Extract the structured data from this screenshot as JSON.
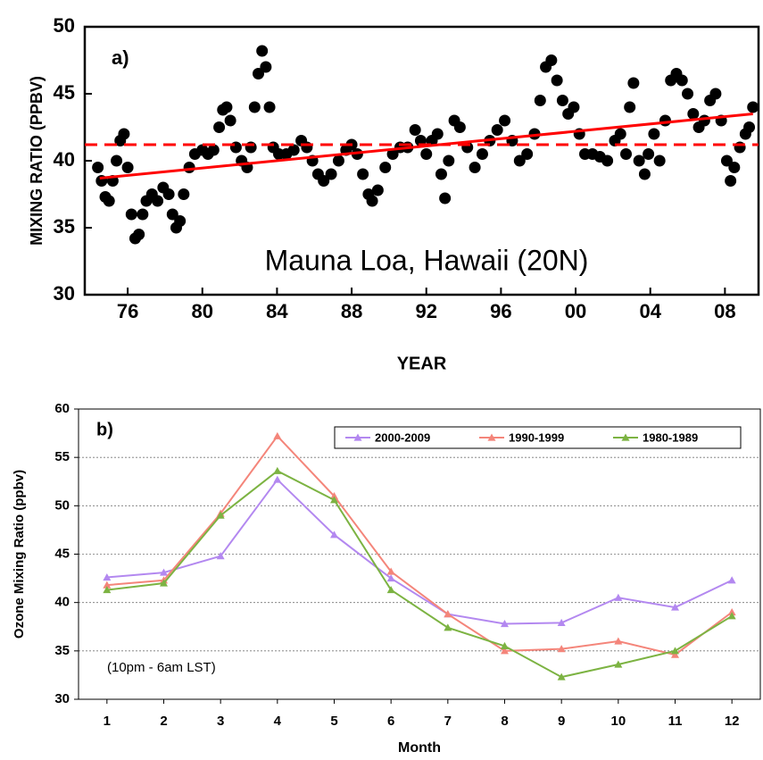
{
  "chart_data": [
    {
      "type": "scatter",
      "panel_label": "a)",
      "annotation": "Mauna Loa, Hawaii (20N)",
      "x_label": "YEAR",
      "y_label": "MIXING RATIO  (PPBV)",
      "color": "#000000",
      "xlim": [
        1973.7,
        2009.8
      ],
      "ylim": [
        30,
        50
      ],
      "xticks": [
        {
          "value": 1976,
          "label": "76"
        },
        {
          "value": 1980,
          "label": "80"
        },
        {
          "value": 1984,
          "label": "84"
        },
        {
          "value": 1988,
          "label": "88"
        },
        {
          "value": 1992,
          "label": "92"
        },
        {
          "value": 1996,
          "label": "96"
        },
        {
          "value": 2000,
          "label": "00"
        },
        {
          "value": 2004,
          "label": "04"
        },
        {
          "value": 2008,
          "label": "08"
        }
      ],
      "yticks": [
        30,
        35,
        40,
        45,
        50
      ],
      "x": [
        1974.4,
        1974.6,
        1974.8,
        1975.0,
        1975.2,
        1975.4,
        1975.6,
        1975.8,
        1976.0,
        1976.2,
        1976.4,
        1976.6,
        1976.8,
        1977.0,
        1977.3,
        1977.6,
        1977.9,
        1978.2,
        1978.4,
        1978.6,
        1978.8,
        1979.0,
        1979.3,
        1979.6,
        1980.0,
        1980.3,
        1980.6,
        1980.9,
        1981.1,
        1981.3,
        1981.5,
        1981.8,
        1982.1,
        1982.4,
        1982.6,
        1982.8,
        1983.0,
        1983.2,
        1983.4,
        1983.6,
        1983.8,
        1984.1,
        1984.5,
        1984.9,
        1985.3,
        1985.6,
        1985.9,
        1986.2,
        1986.5,
        1986.9,
        1987.3,
        1987.7,
        1988.0,
        1988.3,
        1988.6,
        1988.9,
        1989.1,
        1989.4,
        1989.8,
        1990.2,
        1990.6,
        1991.0,
        1991.4,
        1991.7,
        1992.0,
        1992.3,
        1992.6,
        1992.8,
        1993.0,
        1993.2,
        1993.5,
        1993.8,
        1994.2,
        1994.6,
        1995.0,
        1995.4,
        1995.8,
        1996.2,
        1996.6,
        1997.0,
        1997.4,
        1997.8,
        1998.1,
        1998.4,
        1998.7,
        1999.0,
        1999.3,
        1999.6,
        1999.9,
        2000.2,
        2000.5,
        2000.9,
        2001.3,
        2001.7,
        2002.1,
        2002.4,
        2002.7,
        2002.9,
        2003.1,
        2003.4,
        2003.7,
        2003.9,
        2004.2,
        2004.5,
        2004.8,
        2005.1,
        2005.4,
        2005.7,
        2006.0,
        2006.3,
        2006.6,
        2006.9,
        2007.2,
        2007.5,
        2007.8,
        2008.1,
        2008.3,
        2008.5,
        2008.8,
        2009.1,
        2009.3,
        2009.5
      ],
      "y": [
        39.5,
        38.5,
        37.3,
        37.0,
        38.5,
        40.0,
        41.5,
        42.0,
        39.5,
        36.0,
        34.2,
        34.5,
        36.0,
        37.0,
        37.5,
        37.0,
        38.0,
        37.5,
        36.0,
        35.0,
        35.5,
        37.5,
        39.5,
        40.5,
        40.8,
        40.5,
        40.8,
        42.5,
        43.8,
        44.0,
        43.0,
        41.0,
        40.0,
        39.5,
        41.0,
        44.0,
        46.5,
        48.2,
        47.0,
        44.0,
        41.0,
        40.5,
        40.5,
        40.8,
        41.5,
        41.0,
        40.0,
        39.0,
        38.5,
        39.0,
        40.0,
        40.8,
        41.2,
        40.5,
        39.0,
        37.5,
        37.0,
        37.8,
        39.5,
        40.5,
        41.0,
        41.0,
        42.3,
        41.5,
        40.5,
        41.5,
        42.0,
        39.0,
        37.2,
        40.0,
        43.0,
        42.5,
        41.0,
        39.5,
        40.5,
        41.5,
        42.3,
        43.0,
        41.5,
        40.0,
        40.5,
        42.0,
        44.5,
        47.0,
        47.5,
        46.0,
        44.5,
        43.5,
        44.0,
        42.0,
        40.5,
        40.5,
        40.3,
        40.0,
        41.5,
        42.0,
        40.5,
        44.0,
        45.8,
        40.0,
        39.0,
        40.5,
        42.0,
        40.0,
        43.0,
        46.0,
        46.5,
        46.0,
        45.0,
        43.5,
        42.5,
        43.0,
        44.5,
        45.0,
        43.0,
        40.0,
        38.5,
        39.5,
        41.0,
        42.0,
        42.5,
        44.0
      ],
      "trend_line": {
        "x": [
          1974.5,
          2009.5
        ],
        "y": [
          38.7,
          43.5
        ],
        "color": "#ff0000"
      },
      "mean_line": {
        "y": 41.2,
        "color": "#ff0000",
        "dashed": true
      }
    },
    {
      "type": "line",
      "panel_label": "b)",
      "annotation": "(10pm - 6am LST)",
      "x_label": "Month",
      "y_label": "Ozone Mixing Ratio (ppbv)",
      "grid": true,
      "legend": "top-right",
      "x": [
        1,
        2,
        3,
        4,
        5,
        6,
        7,
        8,
        9,
        10,
        11,
        12
      ],
      "xlim": [
        0.5,
        12.5
      ],
      "xticks": [
        1,
        2,
        3,
        4,
        5,
        6,
        7,
        8,
        9,
        10,
        11,
        12
      ],
      "ylim": [
        30,
        60
      ],
      "yticks": [
        30,
        35,
        40,
        45,
        50,
        55,
        60
      ],
      "series": [
        {
          "name": "2000-2009",
          "color": "#b388f0",
          "values": [
            42.6,
            43.1,
            44.8,
            52.7,
            47.0,
            42.5,
            38.8,
            37.8,
            37.9,
            40.5,
            39.5,
            42.3
          ]
        },
        {
          "name": "1990-1999",
          "color": "#f4857a",
          "values": [
            41.8,
            42.3,
            49.2,
            57.2,
            51.0,
            43.2,
            38.8,
            35.0,
            35.2,
            36.0,
            34.6,
            39.0
          ]
        },
        {
          "name": "1980-1989",
          "color": "#7cb342",
          "values": [
            41.3,
            42.0,
            49.0,
            53.6,
            50.6,
            41.3,
            37.4,
            35.5,
            32.3,
            33.6,
            35.0,
            38.6
          ]
        }
      ]
    }
  ]
}
